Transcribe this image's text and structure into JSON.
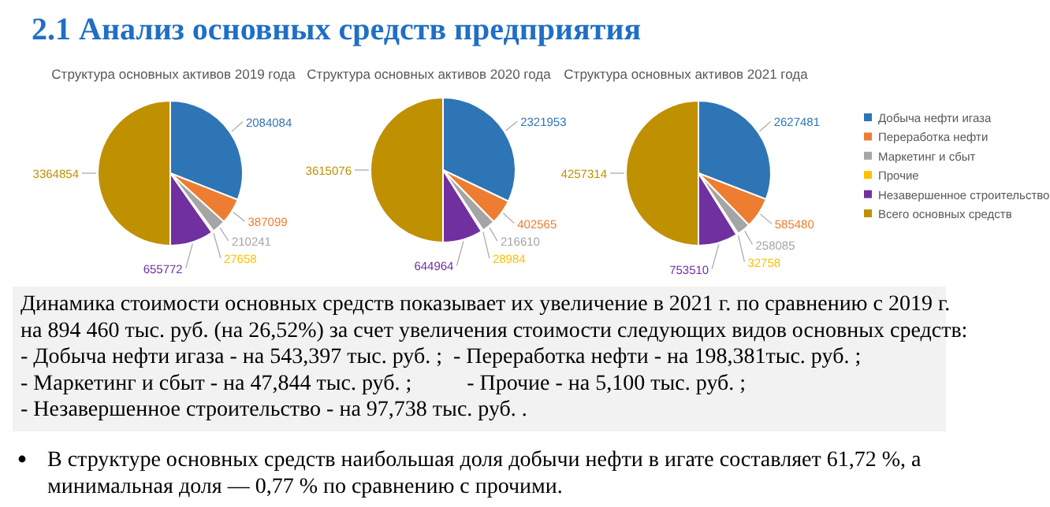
{
  "chart_data": [
    {
      "type": "other",
      "title": "2.1 Анализ основных средств предприятия"
    },
    {
      "type": "pie",
      "title": "Структура основных активов 2019 года",
      "categories": [
        null,
        null,
        null,
        null,
        null,
        null
      ],
      "values": [
        2084084,
        387099,
        210241,
        27658,
        655772,
        3364854
      ],
      "colors": [
        "#2e75b6",
        "#ed7d31",
        "#a5a5a5",
        "#ffc000",
        "#7030a0",
        "#bf9000"
      ],
      "data_labels": true,
      "legend": false
    },
    {
      "type": "pie",
      "title": "Структура основных активов 2020 года",
      "categories": [
        null,
        null,
        null,
        null,
        null,
        null
      ],
      "values": [
        2321953,
        402565,
        216610,
        28984,
        644964,
        3615076
      ],
      "colors": [
        "#2e75b6",
        "#ed7d31",
        "#a5a5a5",
        "#ffc000",
        "#7030a0",
        "#bf9000"
      ],
      "data_labels": true,
      "legend": false
    },
    {
      "type": "pie",
      "title": "Структура основных активов 2021 года",
      "categories": [
        "Добыча нефти игаза",
        "Переработка нефти",
        "Маркетинг и сбыт",
        "Прочие",
        "Незавершенное строительство",
        "Всего основных средств"
      ],
      "values": [
        2627481,
        585480,
        258085,
        32758,
        753510,
        4257314
      ],
      "colors": [
        "#2e75b6",
        "#ed7d31",
        "#a5a5a5",
        "#ffc000",
        "#7030a0",
        "#bf9000"
      ],
      "data_labels": true,
      "legend": "right"
    },
    {
      "type": "other",
      "annotations": [
        "Динамика стоимости основных средств показывает их увеличение в 2021 г. по сравнению с 2019 г.",
        "на 894 460 тыс. руб. (на 26,52%) за счет увеличения стоимости следующих видов основных средств:",
        "- Добыча нефти игаза - на 543,397 тыс. руб. ;  - Переработка нефти - на 198,381тыс. руб. ;",
        "- Маркетинг и сбыт - на 47,844 тыс. руб. ;          - Прочие - на 5,100 тыс. руб. ;",
        "- Незавершенное строительство - на 97,738 тыс. руб. ."
      ]
    },
    {
      "type": "other",
      "annotations": [
        "В структуре основных средств наибольшая доля добычи нефти в игате составляет 61,72 %, а",
        "минимальная доля — 0,77 % по сравнению с прочими."
      ]
    }
  ]
}
